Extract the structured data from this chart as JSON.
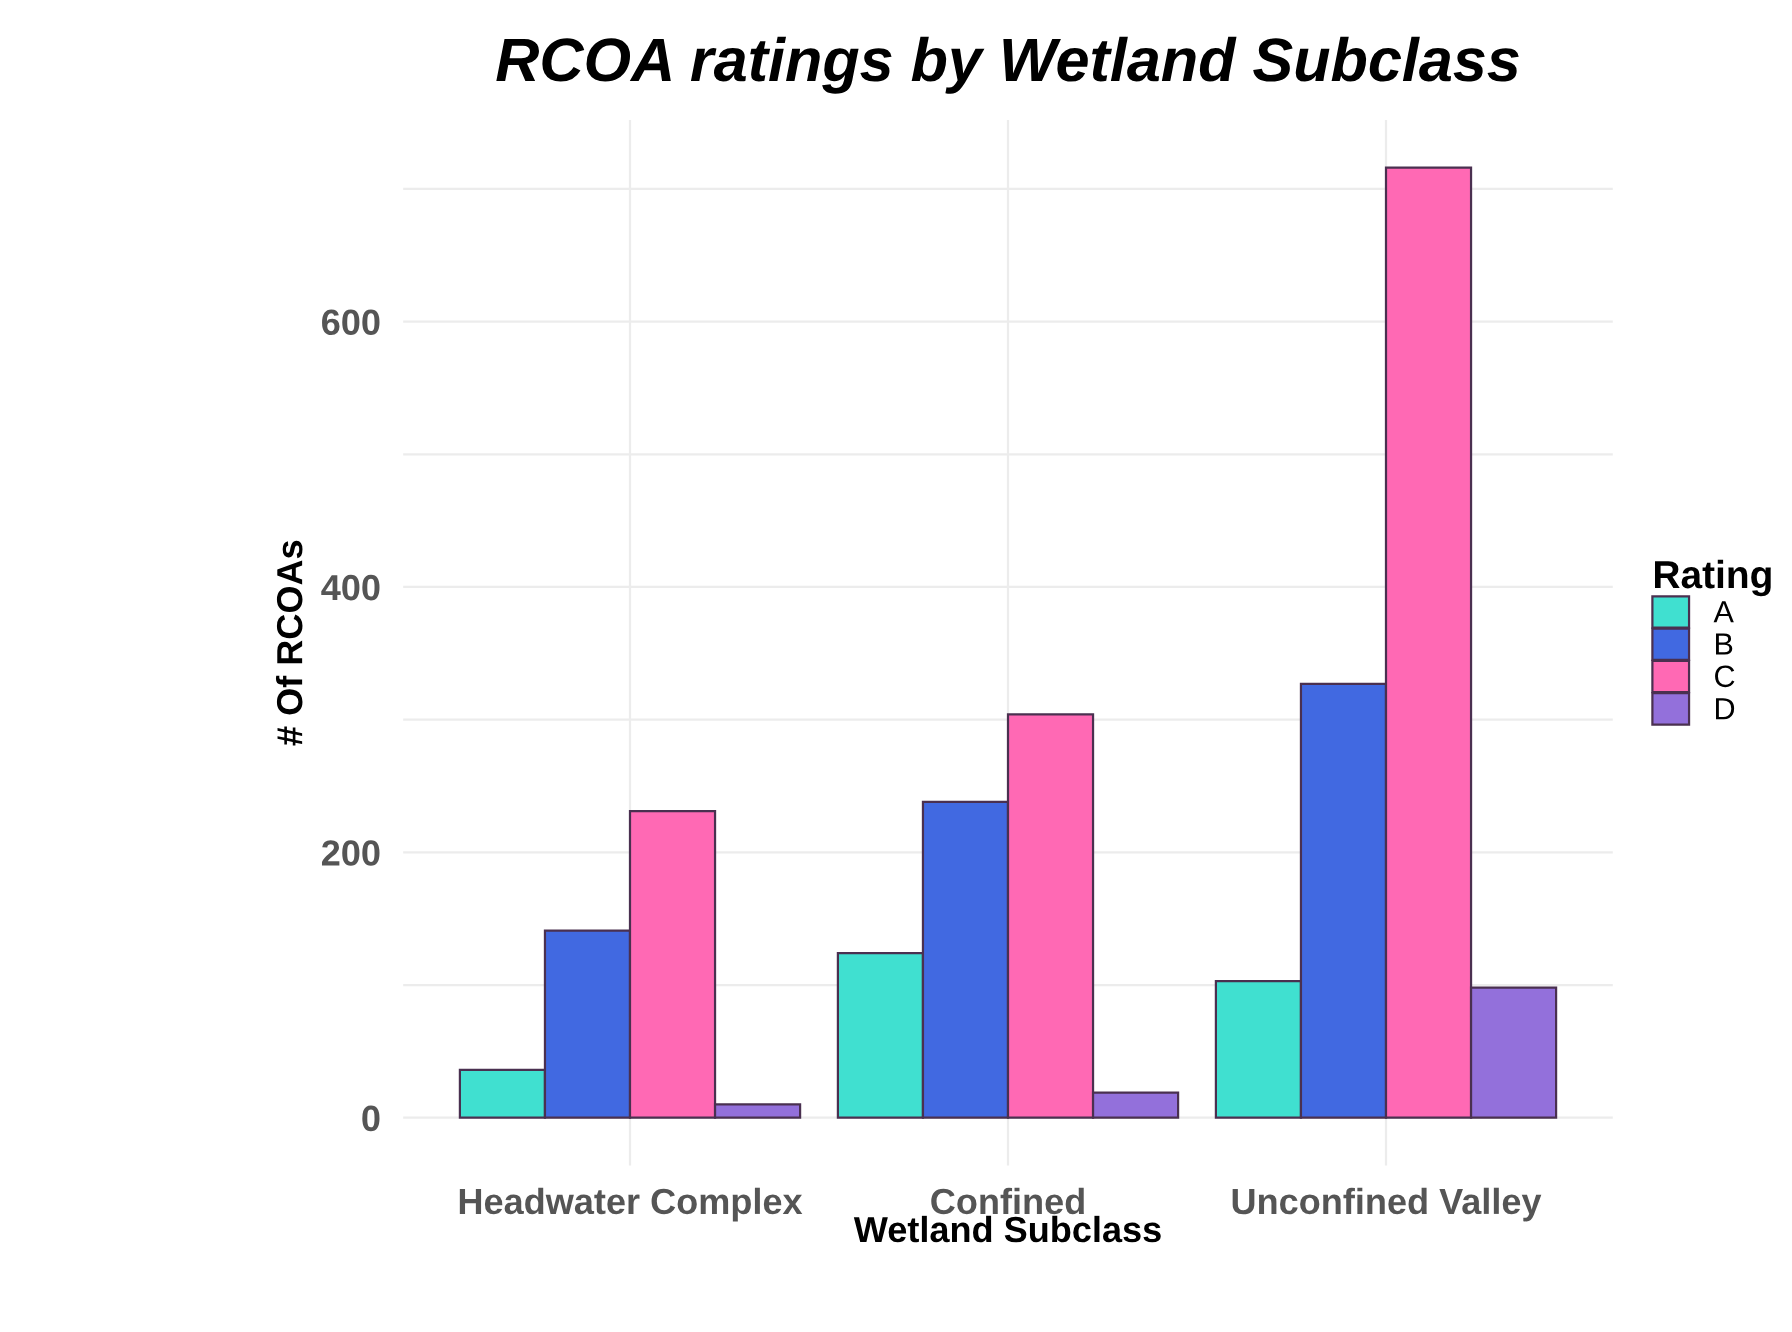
{
  "chart_data": {
    "type": "bar",
    "title": "RCOA ratings by Wetland Subclass",
    "xlabel": "Wetland Subclass",
    "ylabel": "# Of RCOAs",
    "legend_title": "Rating",
    "categories": [
      "Headwater Complex",
      "Confined",
      "Unconfined Valley"
    ],
    "series": [
      {
        "name": "A",
        "color": "#40e0d0",
        "values": [
          36,
          124,
          103
        ]
      },
      {
        "name": "B",
        "color": "#4169e1",
        "values": [
          141,
          238,
          327
        ]
      },
      {
        "name": "C",
        "color": "#ff69b4",
        "values": [
          231,
          304,
          716
        ]
      },
      {
        "name": "D",
        "color": "#9370db",
        "values": [
          10,
          19,
          98
        ]
      }
    ],
    "ylim": [
      -36,
      752
    ],
    "yticks": [
      0,
      {
        "value": 100,
        "label": null
      },
      200,
      {
        "value": 300,
        "label": null
      },
      400,
      {
        "value": 500,
        "label": null
      },
      600,
      {
        "value": 700,
        "label": null
      }
    ],
    "grid": true,
    "legend": "right"
  }
}
